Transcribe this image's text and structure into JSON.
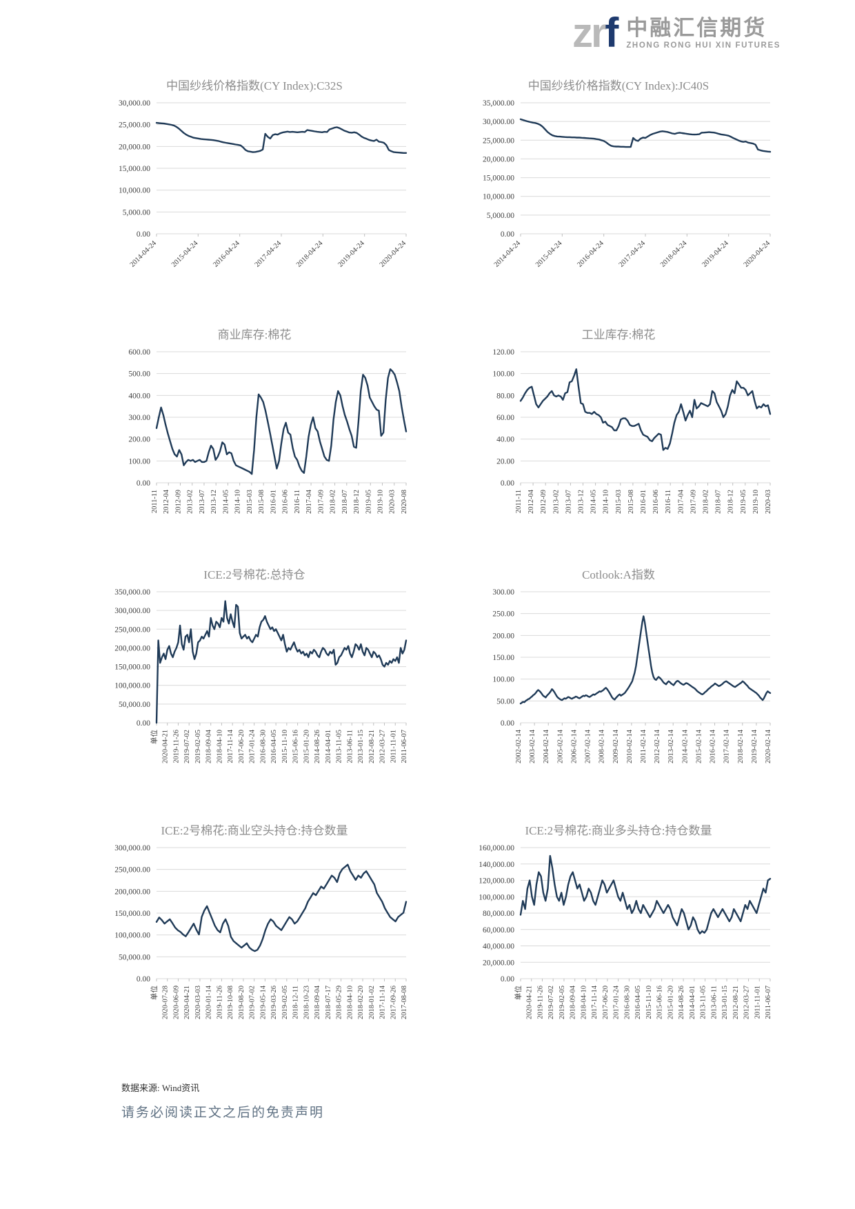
{
  "header": {
    "logo": {
      "zr": "zr",
      "f": "f",
      "cn": "中融汇信期货",
      "en": "ZHONG RONG HUI XIN FUTURES"
    }
  },
  "footer": {
    "source": "数据来源: Wind资讯",
    "disclaimer": "请务必阅读正文之后的免责声明"
  },
  "colors": {
    "line": "#1f3a57",
    "grid": "#d9d9d9",
    "axis": "#bfbfbf",
    "tick_text": "#404040",
    "title_text": "#8c8c8c"
  },
  "chart_data": [
    {
      "type": "line",
      "title": "中国纱线价格指数(CY Index):C32S",
      "ylabel": "",
      "xlabel": "",
      "ylim": [
        0,
        30000
      ],
      "ystep": 5000,
      "grid": "horizontal",
      "legend": "none",
      "x_label_rotation": 45,
      "x_labels": [
        "2014-04-24",
        "2015-04-24",
        "2016-04-24",
        "2017-04-24",
        "2018-04-24",
        "2019-04-24",
        "2020-04-24"
      ],
      "values": [
        25400,
        25350,
        25300,
        25250,
        25150,
        25050,
        24950,
        24800,
        24500,
        24100,
        23600,
        23100,
        22700,
        22400,
        22200,
        22000,
        21900,
        21800,
        21700,
        21650,
        21600,
        21550,
        21500,
        21450,
        21350,
        21250,
        21100,
        20950,
        20850,
        20750,
        20650,
        20550,
        20450,
        20350,
        20250,
        19800,
        19200,
        18900,
        18800,
        18700,
        18750,
        18850,
        19000,
        19300,
        22900,
        22200,
        21800,
        22600,
        22800,
        22700,
        23000,
        23200,
        23300,
        23400,
        23300,
        23350,
        23300,
        23250,
        23300,
        23350,
        23300,
        23750,
        23650,
        23550,
        23450,
        23350,
        23300,
        23250,
        23350,
        23300,
        23900,
        24100,
        24300,
        24400,
        24200,
        23900,
        23600,
        23400,
        23200,
        23150,
        23250,
        23100,
        22700,
        22250,
        21950,
        21750,
        21500,
        21350,
        21250,
        21550,
        21100,
        21000,
        20850,
        20300,
        19200,
        18900,
        18700,
        18650,
        18600,
        18550,
        18500,
        18500
      ]
    },
    {
      "type": "line",
      "title": "中国纱线价格指数(CY Index):JC40S",
      "ylabel": "",
      "xlabel": "",
      "ylim": [
        0,
        35000
      ],
      "ystep": 5000,
      "grid": "horizontal",
      "legend": "none",
      "x_label_rotation": 45,
      "x_labels": [
        "2014-04-24",
        "2015-04-24",
        "2016-04-24",
        "2017-04-24",
        "2018-04-24",
        "2019-04-24",
        "2020-04-24"
      ],
      "values": [
        30600,
        30400,
        30200,
        30000,
        29850,
        29700,
        29600,
        29400,
        29100,
        28600,
        27900,
        27200,
        26700,
        26300,
        26100,
        26000,
        25950,
        25900,
        25850,
        25800,
        25800,
        25750,
        25750,
        25700,
        25700,
        25650,
        25600,
        25550,
        25500,
        25450,
        25400,
        25300,
        25200,
        25000,
        24800,
        24400,
        23900,
        23500,
        23350,
        23300,
        23300,
        23250,
        23250,
        23200,
        23200,
        23200,
        25600,
        25000,
        24800,
        25400,
        25700,
        25600,
        26000,
        26400,
        26700,
        26900,
        27100,
        27300,
        27400,
        27300,
        27200,
        27000,
        26800,
        26700,
        26900,
        27000,
        26900,
        26800,
        26700,
        26600,
        26550,
        26500,
        26550,
        26600,
        27000,
        27050,
        27100,
        27150,
        27100,
        27050,
        26900,
        26700,
        26550,
        26450,
        26350,
        26200,
        25900,
        25550,
        25250,
        24950,
        24700,
        24550,
        24650,
        24350,
        24250,
        24100,
        23800,
        22500,
        22300,
        22150,
        22050,
        21950,
        21900
      ]
    },
    {
      "type": "line",
      "title": "商业库存:棉花",
      "ylabel": "",
      "xlabel": "",
      "ylim": [
        0,
        600
      ],
      "ystep": 100,
      "grid": "horizontal",
      "legend": "none",
      "x_label_rotation": 90,
      "x_labels": [
        "2011-11",
        "2012-04",
        "2012-09",
        "2013-02",
        "2013-07",
        "2013-12",
        "2014-05",
        "2014-10",
        "2015-03",
        "2015-08",
        "2016-01",
        "2016-06",
        "2016-11",
        "2017-04",
        "2017-09",
        "2018-02",
        "2018-07",
        "2018-12",
        "2019-05",
        "2019-10",
        "2020-03",
        "2020-08"
      ],
      "values": [
        250,
        300,
        345,
        310,
        265,
        225,
        190,
        155,
        130,
        120,
        150,
        130,
        80,
        95,
        105,
        100,
        105,
        95,
        100,
        105,
        95,
        95,
        100,
        140,
        170,
        155,
        105,
        120,
        145,
        185,
        175,
        130,
        140,
        135,
        100,
        80,
        75,
        70,
        65,
        60,
        55,
        50,
        40,
        150,
        300,
        405,
        390,
        370,
        330,
        280,
        230,
        175,
        120,
        65,
        100,
        180,
        245,
        275,
        230,
        220,
        160,
        120,
        105,
        75,
        55,
        45,
        120,
        210,
        265,
        300,
        250,
        235,
        190,
        155,
        120,
        105,
        100,
        170,
        290,
        370,
        420,
        400,
        350,
        310,
        280,
        245,
        215,
        165,
        160,
        280,
        420,
        495,
        480,
        445,
        390,
        370,
        350,
        335,
        330,
        215,
        230,
        380,
        480,
        520,
        510,
        495,
        460,
        420,
        350,
        290,
        235
      ]
    },
    {
      "type": "line",
      "title": "工业库存:棉花",
      "ylabel": "",
      "xlabel": "",
      "ylim": [
        0,
        120
      ],
      "ystep": 20,
      "grid": "horizontal",
      "legend": "none",
      "x_label_rotation": 90,
      "x_labels": [
        "2011-11",
        "2012-04",
        "2012-09",
        "2013-02",
        "2013-07",
        "2013-12",
        "2014-05",
        "2014-10",
        "2015-03",
        "2015-08",
        "2016-01",
        "2016-06",
        "2016-11",
        "2017-04",
        "2017-09",
        "2018-02",
        "2018-07",
        "2018-12",
        "2019-05",
        "2019-10",
        "2020-03"
      ],
      "values": [
        75,
        78,
        82,
        85,
        87,
        88,
        80,
        72,
        69,
        72,
        75,
        77,
        79,
        82,
        84,
        80,
        79,
        80,
        79,
        76,
        82,
        83,
        92,
        93,
        98,
        104,
        88,
        73,
        72,
        65,
        64,
        64,
        63,
        65,
        63,
        62,
        60,
        55,
        56,
        53,
        52,
        51,
        48,
        48,
        52,
        58,
        59,
        59,
        57,
        53,
        52,
        52,
        53,
        54,
        48,
        44,
        43,
        42,
        39,
        38,
        41,
        43,
        45,
        44,
        30,
        32,
        31,
        36,
        45,
        55,
        62,
        65,
        72,
        65,
        57,
        62,
        66,
        60,
        76,
        68,
        70,
        73,
        72,
        71,
        70,
        72,
        84,
        82,
        74,
        70,
        66,
        60,
        63,
        70,
        80,
        85,
        82,
        93,
        90,
        87,
        87,
        85,
        80,
        82,
        84,
        75,
        68,
        70,
        69,
        72,
        70,
        71,
        63
      ]
    },
    {
      "type": "line",
      "title": "ICE:2号棉花:总持仓",
      "ylabel": "",
      "xlabel": "",
      "ylim": [
        0,
        350000
      ],
      "ystep": 50000,
      "grid": "horizontal",
      "legend": "none",
      "x_label_rotation": 90,
      "x_labels": [
        "单位",
        "2020-04-21",
        "2019-11-26",
        "2019-07-02",
        "2019-02-05",
        "2018-09-04",
        "2018-04-10",
        "2017-11-14",
        "2017-06-20",
        "2017-01-24",
        "2016-08-30",
        "2016-04-05",
        "2015-11-10",
        "2015-06-16",
        "2015-01-20",
        "2014-08-26",
        "2014-04-01",
        "2013-11-05",
        "2013-06-11",
        "2013-01-15",
        "2012-08-21",
        "2012-03-27",
        "2011-11-01",
        "2011-06-07"
      ],
      "values": [
        0,
        220000,
        160000,
        175000,
        185000,
        170000,
        195000,
        205000,
        185000,
        175000,
        190000,
        200000,
        215000,
        260000,
        210000,
        195000,
        230000,
        235000,
        215000,
        250000,
        190000,
        170000,
        185000,
        215000,
        220000,
        230000,
        225000,
        235000,
        245000,
        230000,
        280000,
        260000,
        250000,
        270000,
        265000,
        255000,
        280000,
        270000,
        325000,
        280000,
        265000,
        290000,
        270000,
        255000,
        315000,
        310000,
        240000,
        225000,
        230000,
        235000,
        225000,
        230000,
        220000,
        215000,
        225000,
        235000,
        230000,
        255000,
        270000,
        275000,
        285000,
        270000,
        260000,
        250000,
        255000,
        245000,
        250000,
        240000,
        230000,
        220000,
        235000,
        210000,
        190000,
        200000,
        195000,
        205000,
        215000,
        200000,
        190000,
        195000,
        185000,
        190000,
        180000,
        185000,
        175000,
        190000,
        185000,
        195000,
        190000,
        180000,
        175000,
        190000,
        200000,
        195000,
        185000,
        180000,
        190000,
        185000,
        195000,
        155000,
        160000,
        175000,
        180000,
        190000,
        200000,
        195000,
        205000,
        185000,
        175000,
        190000,
        210000,
        205000,
        195000,
        210000,
        190000,
        180000,
        200000,
        195000,
        185000,
        175000,
        190000,
        185000,
        175000,
        180000,
        170000,
        155000,
        150000,
        160000,
        155000,
        165000,
        160000,
        170000,
        165000,
        175000,
        160000,
        200000,
        185000,
        195000,
        220000
      ]
    },
    {
      "type": "line",
      "title": "Cotlook:A指数",
      "ylabel": "",
      "xlabel": "",
      "ylim": [
        0,
        300
      ],
      "ystep": 50,
      "grid": "horizontal",
      "legend": "none",
      "x_label_rotation": 90,
      "x_labels": [
        "2002-02-14",
        "2003-02-14",
        "2004-02-14",
        "2005-02-14",
        "2006-02-14",
        "2007-02-14",
        "2008-02-14",
        "2009-02-14",
        "2010-02-14",
        "2011-02-14",
        "2012-02-14",
        "2013-02-14",
        "2014-02-14",
        "2015-02-14",
        "2016-02-14",
        "2017-02-14",
        "2018-02-14",
        "2019-02-14",
        "2020-02-14"
      ],
      "values": [
        44,
        46,
        48,
        47,
        50,
        52,
        54,
        55,
        58,
        60,
        63,
        65,
        68,
        72,
        75,
        73,
        70,
        66,
        62,
        60,
        58,
        62,
        65,
        68,
        72,
        77,
        74,
        70,
        65,
        60,
        57,
        55,
        53,
        52,
        54,
        56,
        55,
        57,
        59,
        58,
        56,
        55,
        57,
        58,
        60,
        59,
        57,
        56,
        58,
        60,
        62,
        61,
        63,
        62,
        60,
        59,
        61,
        63,
        65,
        64,
        66,
        68,
        70,
        72,
        71,
        73,
        75,
        78,
        80,
        77,
        73,
        68,
        63,
        58,
        55,
        53,
        57,
        60,
        63,
        65,
        62,
        64,
        66,
        68,
        72,
        76,
        80,
        85,
        90,
        95,
        105,
        115,
        130,
        150,
        170,
        190,
        210,
        230,
        244,
        230,
        210,
        190,
        170,
        150,
        130,
        115,
        105,
        100,
        98,
        102,
        105,
        103,
        100,
        96,
        92,
        90,
        88,
        92,
        95,
        93,
        90,
        88,
        86,
        90,
        94,
        96,
        95,
        92,
        90,
        88,
        87,
        89,
        91,
        90,
        88,
        86,
        84,
        82,
        80,
        78,
        75,
        72,
        70,
        68,
        66,
        65,
        67,
        70,
        72,
        75,
        78,
        80,
        83,
        85,
        87,
        90,
        88,
        86,
        84,
        85,
        87,
        89,
        92,
        94,
        95,
        93,
        91,
        89,
        87,
        85,
        83,
        82,
        84,
        86,
        88,
        90,
        92,
        95,
        93,
        90,
        87,
        84,
        80,
        78,
        76,
        74,
        72,
        70,
        68,
        65,
        62,
        58,
        55,
        52,
        56,
        62,
        68,
        72,
        70,
        68
      ]
    },
    {
      "type": "line",
      "title": "ICE:2号棉花:商业空头持仓:持仓数量",
      "ylabel": "",
      "xlabel": "",
      "ylim": [
        0,
        300000
      ],
      "ystep": 50000,
      "grid": "horizontal",
      "legend": "none",
      "x_label_rotation": 90,
      "x_labels": [
        "单位",
        "2020-07-28",
        "2020-06-09",
        "2020-04-21",
        "2020-03-03",
        "2020-01-14",
        "2019-11-26",
        "2019-10-08",
        "2019-08-20",
        "2019-07-02",
        "2019-05-14",
        "2019-03-26",
        "2019-02-05",
        "2018-12-11",
        "2018-10-23",
        "2018-09-04",
        "2018-07-17",
        "2018-05-29",
        "2018-04-10",
        "2018-02-20",
        "2018-01-02",
        "2017-11-14",
        "2017-09-26",
        "2017-08-08"
      ],
      "values": [
        130000,
        140000,
        134000,
        126000,
        131000,
        136000,
        127000,
        117000,
        111000,
        107000,
        101000,
        97000,
        106000,
        116000,
        126000,
        112000,
        101000,
        141000,
        156000,
        166000,
        151000,
        136000,
        121000,
        111000,
        106000,
        126000,
        136000,
        121000,
        96000,
        86000,
        81000,
        76000,
        71000,
        76000,
        81000,
        71000,
        66000,
        63000,
        66000,
        76000,
        91000,
        111000,
        126000,
        136000,
        131000,
        121000,
        116000,
        111000,
        121000,
        131000,
        141000,
        136000,
        126000,
        131000,
        141000,
        151000,
        161000,
        176000,
        186000,
        196000,
        191000,
        201000,
        211000,
        206000,
        216000,
        226000,
        236000,
        231000,
        221000,
        241000,
        251000,
        256000,
        261000,
        246000,
        236000,
        226000,
        236000,
        231000,
        241000,
        246000,
        236000,
        226000,
        216000,
        196000,
        186000,
        176000,
        161000,
        151000,
        141000,
        136000,
        131000,
        141000,
        146000,
        151000,
        176000
      ]
    },
    {
      "type": "line",
      "title": "ICE:2号棉花:商业多头持仓:持仓数量",
      "ylabel": "",
      "xlabel": "",
      "ylim": [
        0,
        160000
      ],
      "ystep": 20000,
      "grid": "horizontal",
      "legend": "none",
      "x_label_rotation": 90,
      "x_labels": [
        "单位",
        "2020-04-21",
        "2019-11-26",
        "2019-07-02",
        "2019-02-05",
        "2018-09-04",
        "2018-04-10",
        "2017-11-14",
        "2017-06-20",
        "2017-01-24",
        "2016-08-30",
        "2016-04-05",
        "2015-11-10",
        "2015-06-16",
        "2015-01-20",
        "2014-08-26",
        "2014-04-01",
        "2013-11-05",
        "2013-06-11",
        "2013-01-15",
        "2012-08-21",
        "2012-03-27",
        "2011-11-01",
        "2011-06-07"
      ],
      "values": [
        78000,
        95000,
        85000,
        110000,
        120000,
        100000,
        90000,
        115000,
        130000,
        125000,
        105000,
        95000,
        110000,
        150000,
        135000,
        115000,
        100000,
        95000,
        105000,
        90000,
        100000,
        115000,
        125000,
        130000,
        120000,
        110000,
        115000,
        105000,
        95000,
        100000,
        110000,
        105000,
        95000,
        90000,
        100000,
        110000,
        120000,
        115000,
        105000,
        110000,
        115000,
        120000,
        110000,
        100000,
        95000,
        105000,
        95000,
        85000,
        90000,
        80000,
        85000,
        95000,
        85000,
        80000,
        90000,
        85000,
        80000,
        75000,
        80000,
        85000,
        95000,
        90000,
        85000,
        80000,
        85000,
        90000,
        85000,
        75000,
        70000,
        65000,
        75000,
        85000,
        80000,
        70000,
        60000,
        65000,
        75000,
        70000,
        60000,
        55000,
        58000,
        56000,
        60000,
        70000,
        80000,
        85000,
        80000,
        75000,
        80000,
        85000,
        80000,
        75000,
        70000,
        75000,
        85000,
        80000,
        75000,
        70000,
        80000,
        90000,
        85000,
        95000,
        90000,
        85000,
        80000,
        90000,
        100000,
        110000,
        105000,
        120000,
        122000
      ]
    }
  ]
}
